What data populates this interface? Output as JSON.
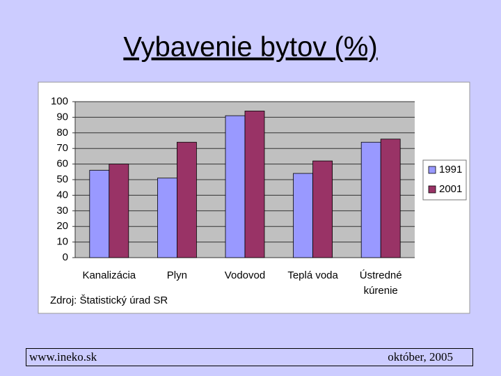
{
  "chart_data": {
    "type": "bar",
    "title": "Vybavenie bytov (%)",
    "source": "Zdroj: Štatistický úrad SR",
    "categories": [
      "Kanalizácia",
      "Plyn",
      "Vodovod",
      "Teplá voda",
      "Ústredné kúrenie"
    ],
    "series": [
      {
        "name": "1991",
        "color": "#9999ff",
        "values": [
          56,
          51,
          91,
          54,
          74
        ]
      },
      {
        "name": "2001",
        "color": "#993366",
        "values": [
          60,
          74,
          94,
          62,
          76
        ]
      }
    ],
    "ylim": [
      0,
      100
    ],
    "yticks": [
      0,
      10,
      20,
      30,
      40,
      50,
      60,
      70,
      80,
      90,
      100
    ],
    "grid": true,
    "legend": "right"
  },
  "footer": {
    "left": "www.ineko.sk",
    "right": "október, 2005"
  }
}
